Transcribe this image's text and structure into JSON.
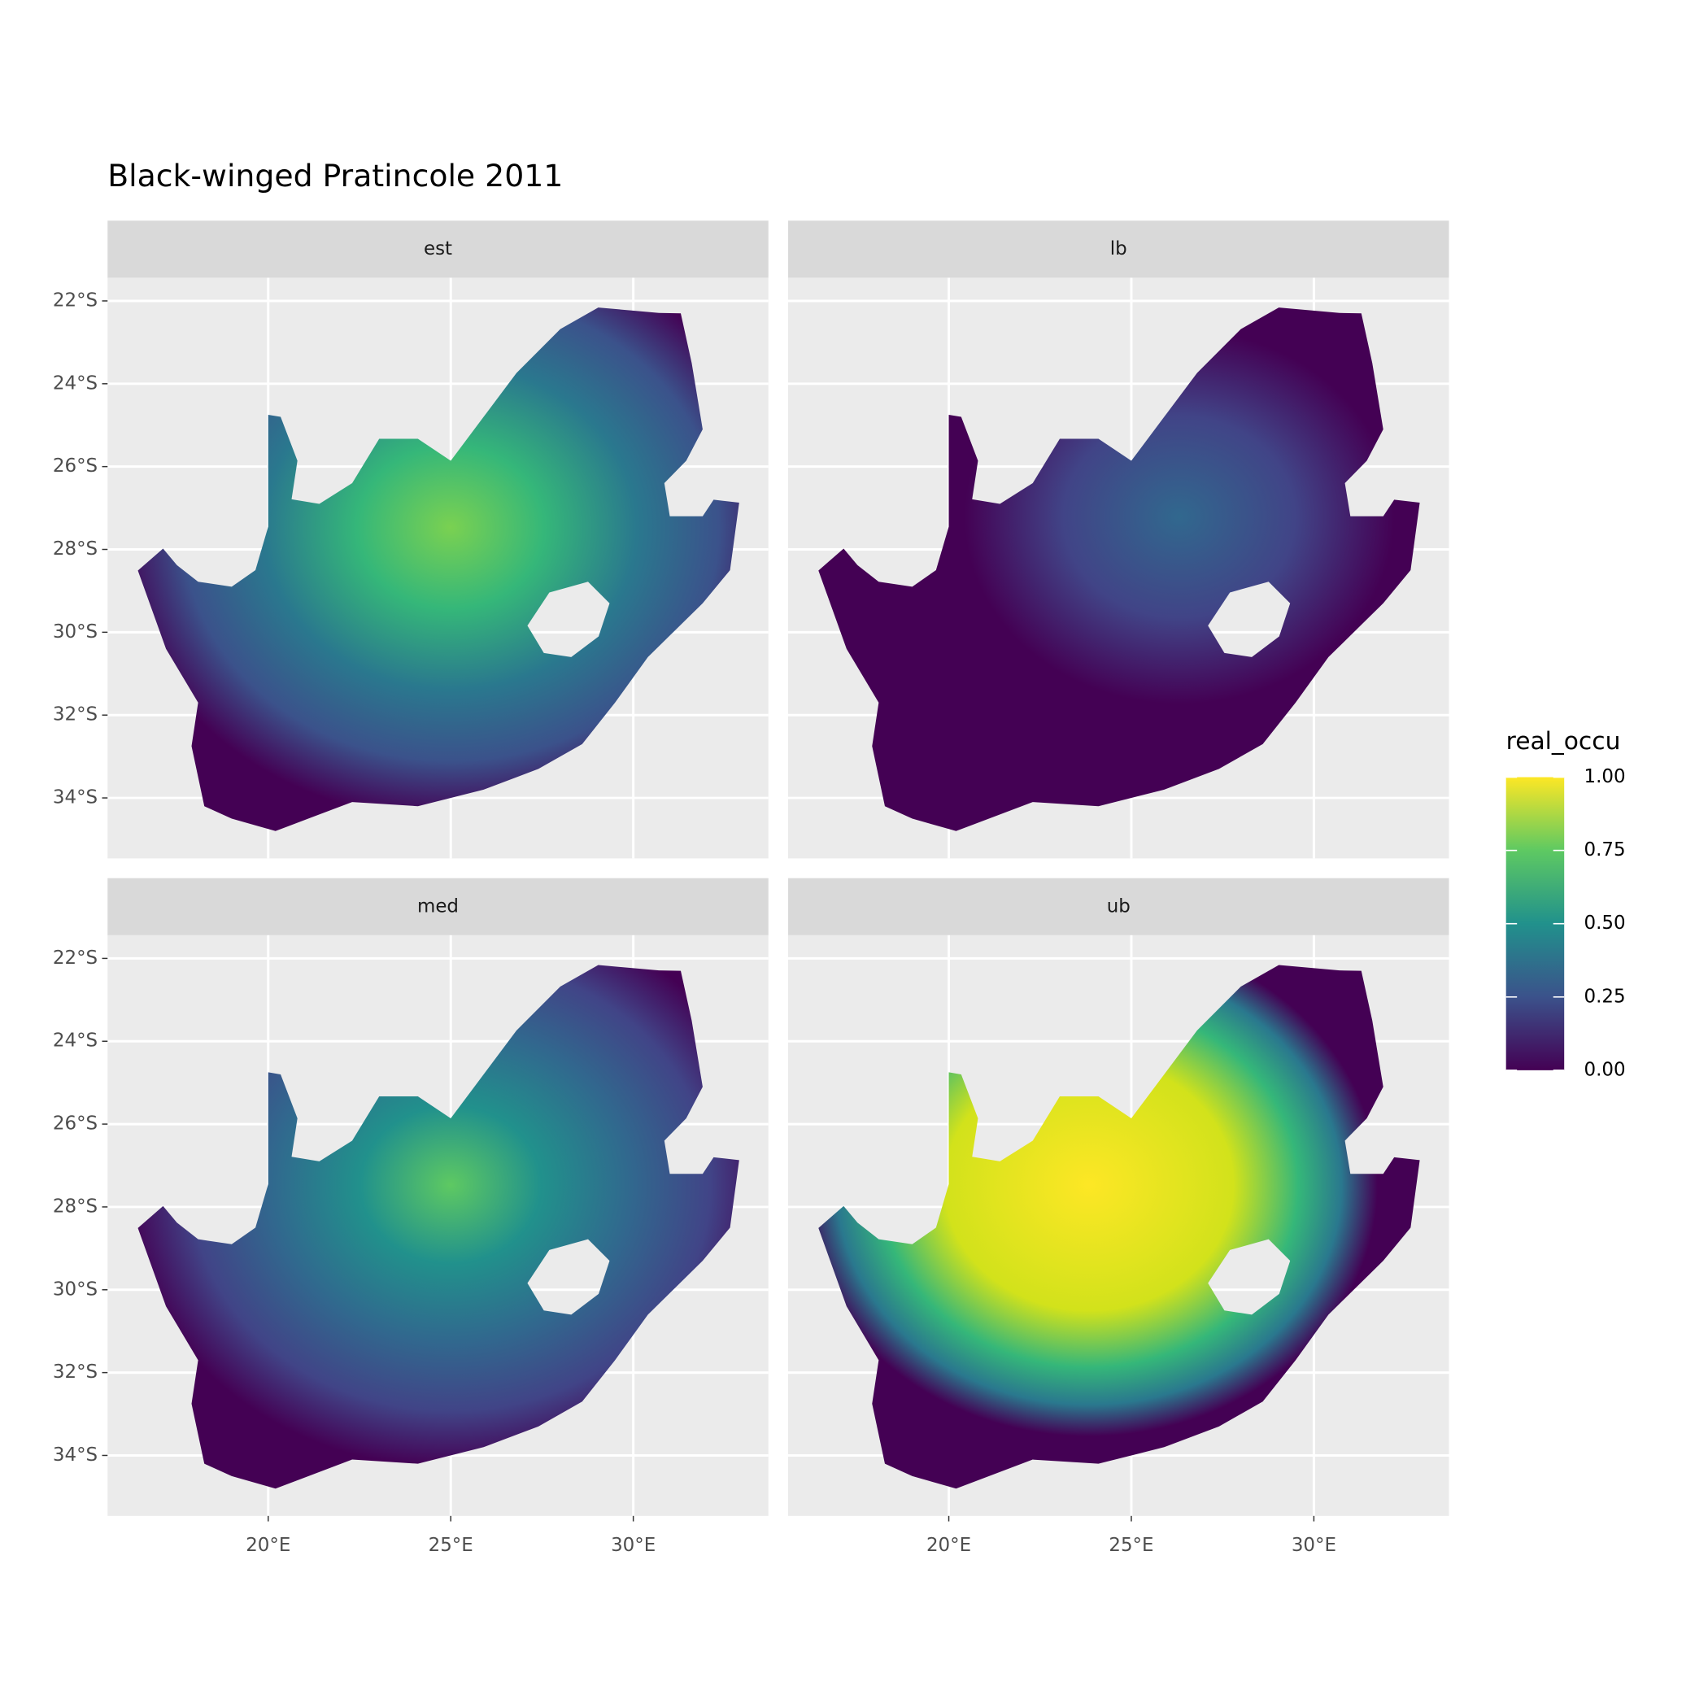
{
  "chart_data": {
    "type": "raster-facets",
    "title": "Black-winged Pratincole 2011",
    "facets": [
      "est",
      "lb",
      "med",
      "ub"
    ],
    "xlim": [
      15.6,
      33.7
    ],
    "ylim": [
      -35.46,
      -21.44
    ],
    "xticks": [
      {
        "value": 20,
        "label": "20°E"
      },
      {
        "value": 25,
        "label": "25°E"
      },
      {
        "value": 30,
        "label": "30°E"
      }
    ],
    "yticks": [
      {
        "value": -22,
        "label": "22°S"
      },
      {
        "value": -24,
        "label": "24°S"
      },
      {
        "value": -26,
        "label": "26°S"
      },
      {
        "value": -28,
        "label": "28°S"
      },
      {
        "value": -30,
        "label": "30°S"
      },
      {
        "value": -32,
        "label": "32°S"
      },
      {
        "value": -34,
        "label": "34°S"
      }
    ],
    "grid": true,
    "legend": {
      "title": "real_occu",
      "limits": [
        0,
        1
      ],
      "ticks": [
        {
          "value": 0,
          "label": "0.00"
        },
        {
          "value": 0.25,
          "label": "0.25"
        },
        {
          "value": 0.5,
          "label": "0.50"
        },
        {
          "value": 0.75,
          "label": "0.75"
        },
        {
          "value": 1,
          "label": "1.00"
        }
      ],
      "colors": [
        "#440154",
        "#3b528b",
        "#21918c",
        "#5ec962",
        "#fde725"
      ]
    }
  }
}
